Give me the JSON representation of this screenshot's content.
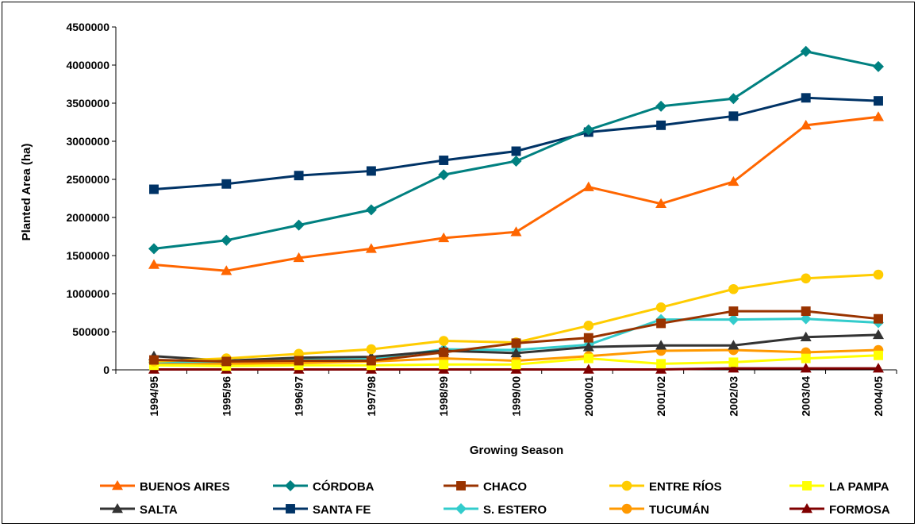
{
  "chart_data": {
    "type": "line",
    "title": "",
    "xlabel": "Growing Season",
    "ylabel": "Planted Area (ha)",
    "ylim": [
      0,
      4500000
    ],
    "yticks": [
      0,
      500000,
      1000000,
      1500000,
      2000000,
      2500000,
      3000000,
      3500000,
      4000000,
      4500000
    ],
    "ytick_labels": [
      "0",
      "500000",
      "1000000",
      "1500000",
      "2000000",
      "2500000",
      "3000000",
      "3500000",
      "4000000",
      "4500000"
    ],
    "grid": false,
    "legend_position": "bottom",
    "categories": [
      "1994/95",
      "1995/96",
      "1996/97",
      "1997/98",
      "1998/99",
      "1999/00",
      "2000/01",
      "2001/02",
      "2002/03",
      "2003/04",
      "2004/05"
    ],
    "series": [
      {
        "name": "BUENOS AIRES",
        "color": "#FF6600",
        "marker": "triangle",
        "values": [
          1380000,
          1300000,
          1470000,
          1590000,
          1730000,
          1810000,
          2400000,
          2180000,
          2470000,
          3210000,
          3320000
        ]
      },
      {
        "name": "CÓRDOBA",
        "color": "#008080",
        "marker": "diamond",
        "values": [
          1590000,
          1700000,
          1900000,
          2100000,
          2560000,
          2740000,
          3150000,
          3460000,
          3560000,
          4180000,
          3980000
        ]
      },
      {
        "name": "CHACO",
        "color": "#993300",
        "marker": "square",
        "values": [
          130000,
          110000,
          120000,
          120000,
          230000,
          350000,
          420000,
          610000,
          770000,
          770000,
          670000
        ]
      },
      {
        "name": "ENTRE RÍOS",
        "color": "#FFCC00",
        "marker": "circle",
        "values": [
          110000,
          150000,
          210000,
          270000,
          380000,
          360000,
          580000,
          820000,
          1060000,
          1200000,
          1250000
        ]
      },
      {
        "name": "LA PAMPA",
        "color": "#FFFF00",
        "marker": "square",
        "values": [
          60000,
          50000,
          60000,
          60000,
          70000,
          70000,
          150000,
          80000,
          100000,
          150000,
          190000
        ]
      },
      {
        "name": "SALTA",
        "color": "#333333",
        "marker": "triangle",
        "values": [
          180000,
          120000,
          160000,
          170000,
          250000,
          220000,
          300000,
          320000,
          320000,
          430000,
          460000
        ]
      },
      {
        "name": "SANTA FE",
        "color": "#003366",
        "marker": "square",
        "values": [
          2370000,
          2440000,
          2550000,
          2610000,
          2750000,
          2870000,
          3120000,
          3210000,
          3330000,
          3570000,
          3530000
        ]
      },
      {
        "name": "S. ESTERO",
        "color": "#33CCCC",
        "marker": "diamond",
        "values": [
          100000,
          110000,
          130000,
          140000,
          270000,
          260000,
          330000,
          660000,
          660000,
          670000,
          620000
        ]
      },
      {
        "name": "TUCUMÁN",
        "color": "#FF9900",
        "marker": "circle",
        "values": [
          90000,
          80000,
          90000,
          110000,
          150000,
          120000,
          180000,
          250000,
          260000,
          230000,
          260000
        ]
      },
      {
        "name": "FORMOSA",
        "color": "#800000",
        "marker": "triangle",
        "values": [
          5000,
          5000,
          5000,
          5000,
          5000,
          5000,
          5000,
          5000,
          20000,
          20000,
          20000
        ]
      }
    ]
  }
}
